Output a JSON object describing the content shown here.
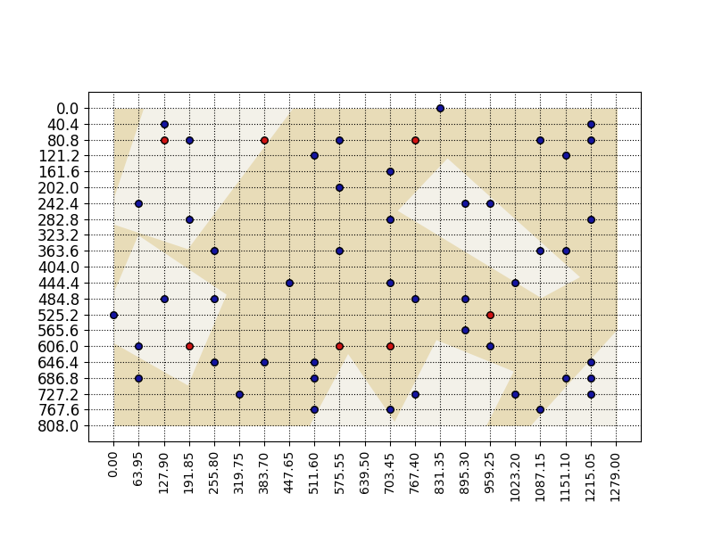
{
  "chart_data": {
    "type": "scatter",
    "xlim": [
      -63.95,
      1342.95
    ],
    "ylim": [
      848.4,
      -40.4
    ],
    "xticks": [
      {
        "value": 0,
        "label": "0.00"
      },
      {
        "value": 63.95,
        "label": "63.95"
      },
      {
        "value": 127.9,
        "label": "127.90"
      },
      {
        "value": 191.85,
        "label": "191.85"
      },
      {
        "value": 255.8,
        "label": "255.80"
      },
      {
        "value": 319.75,
        "label": "319.75"
      },
      {
        "value": 383.7,
        "label": "383.70"
      },
      {
        "value": 447.65,
        "label": "447.65"
      },
      {
        "value": 511.6,
        "label": "511.60"
      },
      {
        "value": 575.55,
        "label": "575.55"
      },
      {
        "value": 639.5,
        "label": "639.50"
      },
      {
        "value": 703.45,
        "label": "703.45"
      },
      {
        "value": 767.4,
        "label": "767.40"
      },
      {
        "value": 831.35,
        "label": "831.35"
      },
      {
        "value": 895.3,
        "label": "895.30"
      },
      {
        "value": 959.25,
        "label": "959.25"
      },
      {
        "value": 1023.2,
        "label": "1023.20"
      },
      {
        "value": 1087.15,
        "label": "1087.15"
      },
      {
        "value": 1151.1,
        "label": "1151.10"
      },
      {
        "value": 1215.05,
        "label": "1215.05"
      },
      {
        "value": 1279,
        "label": "1279.00"
      }
    ],
    "yticks": [
      0.0,
      40.4,
      80.8,
      121.2,
      161.6,
      202.0,
      242.4,
      282.8,
      323.2,
      363.6,
      404.0,
      444.4,
      484.8,
      525.2,
      565.6,
      606.0,
      646.4,
      686.8,
      727.2,
      767.6,
      808.0
    ],
    "grid": true,
    "series": [
      {
        "color": "#1414a0",
        "marker": "circle",
        "x": [
          831.35,
          127.9,
          1215.05,
          191.85,
          575.55,
          1087.15,
          1215.05,
          511.6,
          1151.1,
          703.45,
          575.55,
          63.95,
          895.3,
          959.25,
          191.85,
          703.45,
          1215.05,
          255.8,
          575.55,
          1087.15,
          1151.1,
          447.65,
          703.45,
          1023.2,
          127.9,
          255.8,
          767.4,
          895.3,
          0,
          895.3,
          63.95,
          959.25,
          255.8,
          383.7,
          511.6,
          1215.05,
          63.95,
          511.6,
          1151.1,
          1215.05,
          319.75,
          767.4,
          1023.2,
          1215.05,
          511.6,
          703.45,
          1087.15
        ],
        "y": [
          0,
          40.4,
          40.4,
          80.8,
          80.8,
          80.8,
          80.8,
          121.2,
          121.2,
          161.6,
          202.0,
          242.4,
          242.4,
          242.4,
          282.8,
          282.8,
          282.8,
          363.6,
          363.6,
          363.6,
          363.6,
          444.4,
          444.4,
          444.4,
          484.8,
          484.8,
          484.8,
          484.8,
          525.2,
          565.6,
          606.0,
          606.0,
          646.4,
          646.4,
          646.4,
          646.4,
          686.8,
          686.8,
          686.8,
          686.8,
          727.2,
          727.2,
          727.2,
          727.2,
          767.6,
          767.6,
          767.6
        ]
      },
      {
        "color": "#d01414",
        "marker": "circle",
        "x": [
          127.9,
          383.7,
          767.4,
          959.25,
          191.85,
          575.55,
          703.45
        ],
        "y": [
          80.8,
          80.8,
          80.8,
          525.2,
          606.0,
          606.0,
          606.0
        ]
      }
    ]
  }
}
